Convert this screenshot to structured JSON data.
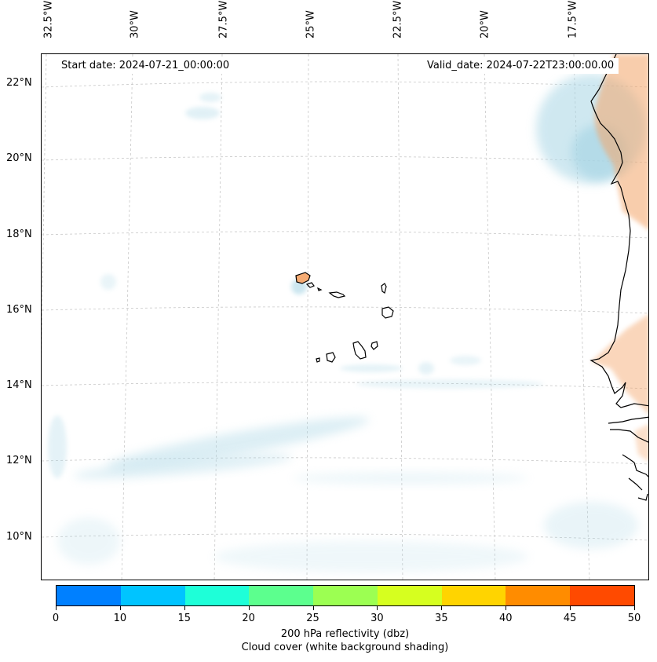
{
  "map": {
    "start_date_label": "Start date: 2024-07-21_00:00:00",
    "valid_date_label": "Valid_date: 2024-07-22T23:00:00.00",
    "longitude_labels": [
      "32.5°W",
      "30°W",
      "27.5°W",
      "25°W",
      "22.5°W",
      "20°W",
      "17.5°W"
    ],
    "latitude_labels": [
      "22°N",
      "20°N",
      "18°N",
      "16°N",
      "14°N",
      "12°N",
      "10°N"
    ],
    "colors": {
      "cloud_shade": "#a9d6e5",
      "land_warm": "#f4a66b",
      "coastline": "#000000",
      "gridline": "#c8c8c8"
    }
  },
  "colorbar": {
    "title_line1": "200 hPa reflectivity (dbz)",
    "title_line2": "Cloud cover (white background shading)",
    "ticks": [
      "0",
      "10",
      "15",
      "20",
      "25",
      "30",
      "35",
      "40",
      "45",
      "50"
    ],
    "colors": [
      "#0080ff",
      "#00c4ff",
      "#1effd8",
      "#5cff8e",
      "#9cff52",
      "#d6ff1f",
      "#ffd400",
      "#ff8c00",
      "#ff4a00"
    ]
  }
}
